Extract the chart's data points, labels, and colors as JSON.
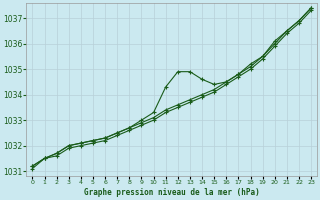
{
  "title": "Graphe pression niveau de la mer (hPa)",
  "background_color": "#cbe9f0",
  "grid_color": "#b8d0d8",
  "line_color": "#1a5c1a",
  "x_labels": [
    "0",
    "1",
    "2",
    "3",
    "4",
    "5",
    "6",
    "7",
    "8",
    "9",
    "10",
    "11",
    "12",
    "13",
    "14",
    "15",
    "16",
    "17",
    "18",
    "19",
    "20",
    "21",
    "22",
    "23"
  ],
  "ylim": [
    1030.8,
    1037.6
  ],
  "yticks": [
    1031,
    1032,
    1033,
    1034,
    1035,
    1036,
    1037
  ],
  "series_main": [
    1031.2,
    1031.5,
    1031.7,
    1032.0,
    1032.1,
    1032.2,
    1032.3,
    1032.5,
    1032.7,
    1032.9,
    1033.1,
    1033.4,
    1033.6,
    1033.8,
    1034.0,
    1034.2,
    1034.5,
    1034.8,
    1035.1,
    1035.5,
    1036.0,
    1036.5,
    1036.9,
    1037.4
  ],
  "series_high": [
    1031.2,
    1031.5,
    1031.7,
    1032.0,
    1032.1,
    1032.2,
    1032.3,
    1032.5,
    1032.7,
    1033.0,
    1033.3,
    1034.3,
    1034.9,
    1034.9,
    1034.6,
    1034.4,
    1034.5,
    1034.8,
    1035.2,
    1035.5,
    1036.1,
    1036.5,
    1036.9,
    1037.4
  ],
  "series_low": [
    1031.1,
    1031.5,
    1031.6,
    1031.9,
    1032.0,
    1032.1,
    1032.2,
    1032.4,
    1032.6,
    1032.8,
    1033.0,
    1033.3,
    1033.5,
    1033.7,
    1033.9,
    1034.1,
    1034.4,
    1034.7,
    1035.0,
    1035.4,
    1035.9,
    1036.4,
    1036.8,
    1037.3
  ]
}
